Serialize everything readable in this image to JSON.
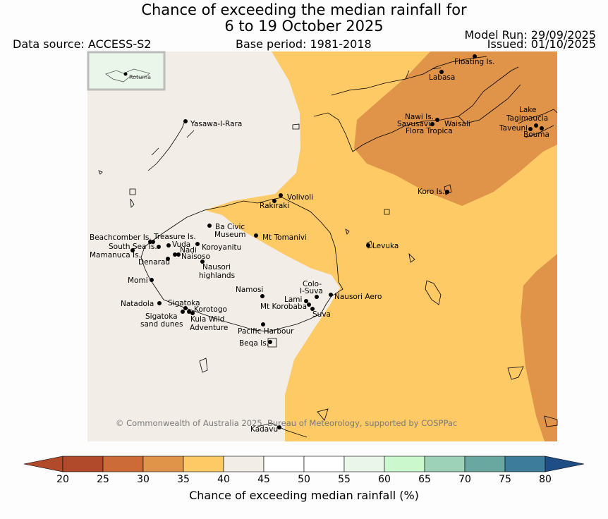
{
  "title": {
    "line1": "Chance of exceeding the median rainfall for",
    "line2": "6 to 19 October 2025"
  },
  "header": {
    "data_source": "Data source: ACCESS-S2",
    "base_period": "Base period: 1981-2018",
    "model_run": "Model Run: 29/09/2025",
    "issued": "Issued: 01/10/2025"
  },
  "inset": {
    "label": "Rotuma"
  },
  "copyright": "© Commonwealth of Australia 2025, Bureau of Meteorology, supported by COSPPac",
  "places": {
    "floating_is": "Floating Is.",
    "labasa": "Labasa",
    "yasawa": "Yasawa-I-Rara",
    "nawi": "Nawi Is.",
    "savusavu": "Savusavu",
    "waisali": "Waisali",
    "flora_tropica": "Flora Tropica",
    "lake_tagimaucia_1": "Lake",
    "lake_tagimaucia_2": "Tagimaucia",
    "taveuni": "Taveuni",
    "bouma": "Bouma",
    "koro": "Koro Is.",
    "volivoli": "Volivoli",
    "rakiraki": "Rakiraki",
    "ba_civic_1": "Ba Civic",
    "ba_civic_2": "Museum",
    "mt_tomanivi": "Mt Tomanivi",
    "levuka": "Levuka",
    "beachcomber": "Beachcomber Is.",
    "treasure": "Treasure Is.",
    "south_sea": "South Sea Is.",
    "vuda": "Vuda",
    "nadi": "Nadi",
    "koroyanitu": "Koroyanitu",
    "mamanuca": "Mamanuca Is.",
    "naisoso": "Naisoso",
    "denarau": "Denarau",
    "nausori_high_1": "Nausori",
    "nausori_high_2": "highlands",
    "momi": "Momi",
    "namosi": "Namosi",
    "colo_suva_1": "Colo-",
    "colo_suva_2": "I-Suva",
    "nausori_aero": "Nausori Aero",
    "natadola": "Natadola",
    "sigatoka": "Sigatoka",
    "lami": "Lami",
    "mt_korobaba": "Mt Korobaba",
    "korotogo": "Korotogo",
    "suva": "Suva",
    "sigatoka_dunes_1": "Sigatoka",
    "sigatoka_dunes_2": "sand dunes",
    "kula_1": "Kula Wild",
    "kula_2": "Adventure",
    "pacific_harbour": "Pacific Harbour",
    "beqa": "Beqa Is.",
    "kadavu": "Kadavu"
  },
  "colorbar": {
    "title": "Chance of exceeding median rainfall (%)",
    "ticks": [
      "20",
      "25",
      "30",
      "35",
      "40",
      "45",
      "50",
      "55",
      "60",
      "65",
      "70",
      "75",
      "80"
    ],
    "colors": [
      "#b04a2a",
      "#cc6a38",
      "#e0944a",
      "#fdca65",
      "#f2ede7",
      "#ffffff",
      "#ffffff",
      "#eaf6ea",
      "#cbf8cd",
      "#9dd1b8",
      "#69a8a0",
      "#3e7c9c",
      "#1f4e86"
    ]
  },
  "map_fill_colors": {
    "neutral": "#f2ede7",
    "range_35_40": "#fdca65",
    "range_30_35": "#e0944a"
  }
}
